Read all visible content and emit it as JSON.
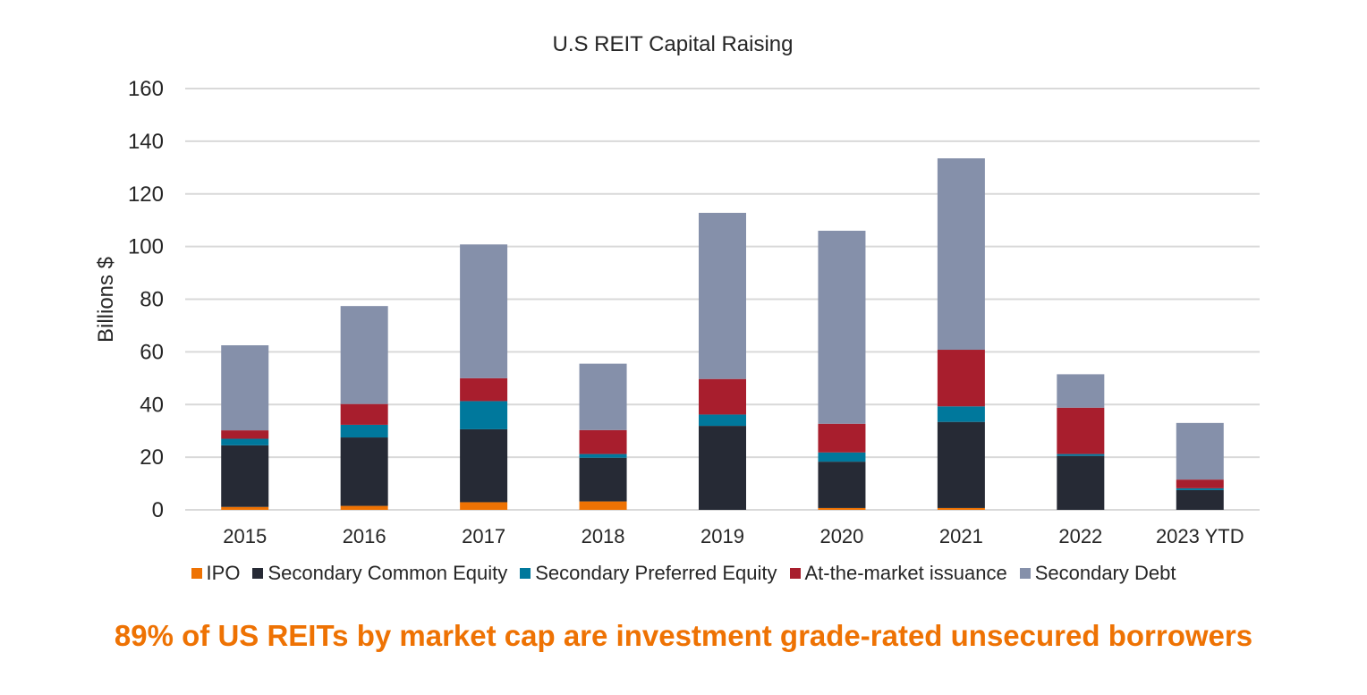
{
  "chart_data": {
    "type": "bar",
    "stacked": true,
    "title": "U.S REIT Capital Raising",
    "xlabel": "",
    "ylabel": "Billions $",
    "ylim": [
      0,
      160
    ],
    "yticks": [
      0,
      20,
      40,
      60,
      80,
      100,
      120,
      140,
      160
    ],
    "grid": true,
    "legend_position": "bottom",
    "categories": [
      "2015",
      "2016",
      "2017",
      "2018",
      "2019",
      "2020",
      "2021",
      "2022",
      "2023 YTD"
    ],
    "series": [
      {
        "name": "IPO",
        "color": "#ee7203",
        "values": [
          1.1,
          1.5,
          2.9,
          3.2,
          0,
          0.7,
          0.7,
          0,
          0
        ]
      },
      {
        "name": "Secondary Common Equity",
        "color": "#262a35",
        "values": [
          23.4,
          26.0,
          27.7,
          16.6,
          31.9,
          17.6,
          32.7,
          20.5,
          7.5
        ]
      },
      {
        "name": "Secondary Preferred Equity",
        "color": "#00789c",
        "values": [
          2.5,
          4.8,
          10.7,
          1.4,
          4.3,
          3.5,
          5.9,
          0.7,
          0.7
        ]
      },
      {
        "name": "At-the-market issuance",
        "color": "#a81e2d",
        "values": [
          3.2,
          7.9,
          8.7,
          9.1,
          13.5,
          10.9,
          21.5,
          17.6,
          3.3
        ]
      },
      {
        "name": "Secondary Debt",
        "color": "#8590aa",
        "values": [
          32.3,
          37.2,
          50.8,
          25.2,
          63.1,
          73.3,
          72.7,
          12.7,
          21.5
        ]
      }
    ]
  },
  "footer": {
    "text": "89% of US REITs by market cap are investment grade-rated unsecured borrowers",
    "color": "#ee7203"
  },
  "style": {
    "gridline_color": "#d9d9d9"
  }
}
